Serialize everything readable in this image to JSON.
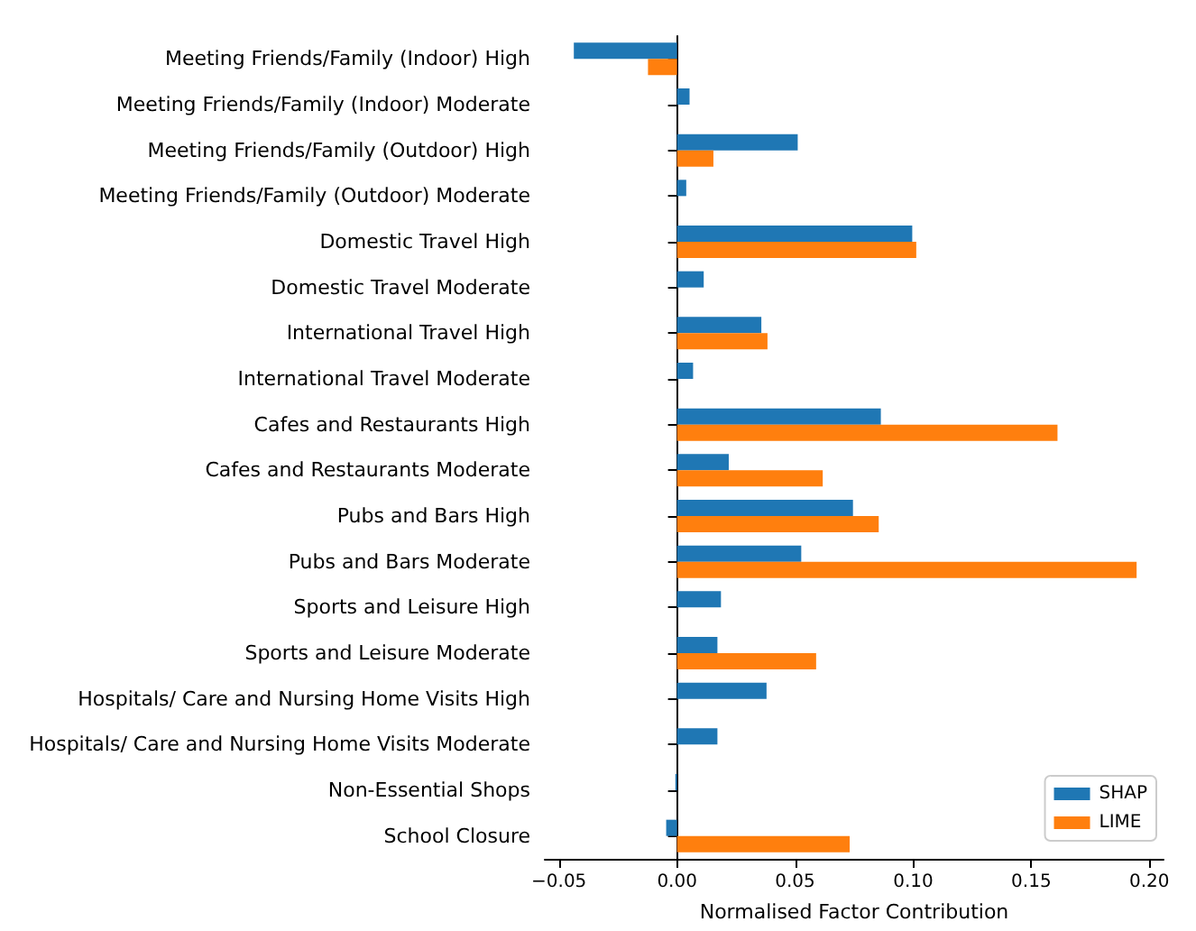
{
  "chart_data": {
    "type": "bar",
    "orientation": "horizontal",
    "xlabel": "Normalised Factor Contribution",
    "categories": [
      "Meeting Friends/Family (Indoor) High",
      "Meeting Friends/Family (Indoor) Moderate",
      "Meeting Friends/Family (Outdoor) High",
      "Meeting Friends/Family (Outdoor) Moderate",
      "Domestic Travel High",
      "Domestic Travel Moderate",
      "International Travel High",
      "International Travel Moderate",
      "Cafes and Restaurants High",
      "Cafes and Restaurants Moderate",
      "Pubs and Bars High",
      "Pubs and Bars Moderate",
      "Sports and Leisure High",
      "Sports and Leisure Moderate",
      "Hospitals/ Care and Nursing Home Visits High",
      "Hospitals/ Care and Nursing Home Visits Moderate",
      "Non-Essential Shops",
      "School Closure"
    ],
    "series": [
      {
        "name": "SHAP",
        "color": "#1f77b4",
        "values": [
          -0.0437,
          0.0053,
          0.0511,
          0.0039,
          0.0996,
          0.0113,
          0.0357,
          0.0068,
          0.0863,
          0.0219,
          0.0745,
          0.0526,
          0.0186,
          0.0171,
          0.0379,
          0.0171,
          -0.0007,
          -0.0046
        ]
      },
      {
        "name": "LIME",
        "color": "#ff7f0e",
        "values": [
          -0.0123,
          null,
          0.0154,
          null,
          0.1013,
          null,
          0.0383,
          null,
          0.1611,
          0.0617,
          0.0854,
          0.1946,
          null,
          0.0589,
          null,
          null,
          null,
          0.0731
        ]
      }
    ],
    "xlim": [
      -0.056,
      0.206
    ],
    "xticks": [
      {
        "value": -0.05,
        "label": "−0.05"
      },
      {
        "value": 0,
        "label": "0.00"
      },
      {
        "value": 0.05,
        "label": "0.05"
      },
      {
        "value": 0.1,
        "label": "0.10"
      },
      {
        "value": 0.15,
        "label": "0.15"
      },
      {
        "value": 0.2,
        "label": "0.20"
      }
    ],
    "legend": "bottom right"
  }
}
